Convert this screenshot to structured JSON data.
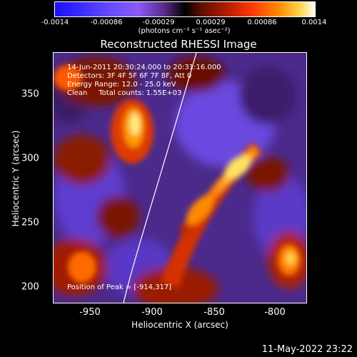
{
  "colorbar": {
    "ticks": [
      "-0.0014",
      "-0.00086",
      "-0.00029",
      "0.00029",
      "0.00086",
      "0.0014"
    ],
    "unit": "(photons cm⁻² s⁻¹ asec⁻²)"
  },
  "title": "Reconstructed RHESSI Image",
  "info": {
    "time": "14-Jun-2011 20:30:24.000 to 20:31:16.000",
    "detectors": "Detectors: 3F 4F 5F 6F 7F 8F, Att 0",
    "energy": "Energy Range: 12.0 - 25.0 keV",
    "clean": "Clean     Total counts: 1.55E+03",
    "peak": "Position of Peak = [-914,317]"
  },
  "axes": {
    "xlabel": "Heliocentric X (arcsec)",
    "ylabel": "Heliocentric Y (arcsec)",
    "xticks": [
      "-950",
      "-900",
      "-850",
      "-800"
    ],
    "yticks": [
      "350",
      "300",
      "250",
      "200"
    ]
  },
  "footer": {
    "date": "11-May-2022 23:22"
  }
}
